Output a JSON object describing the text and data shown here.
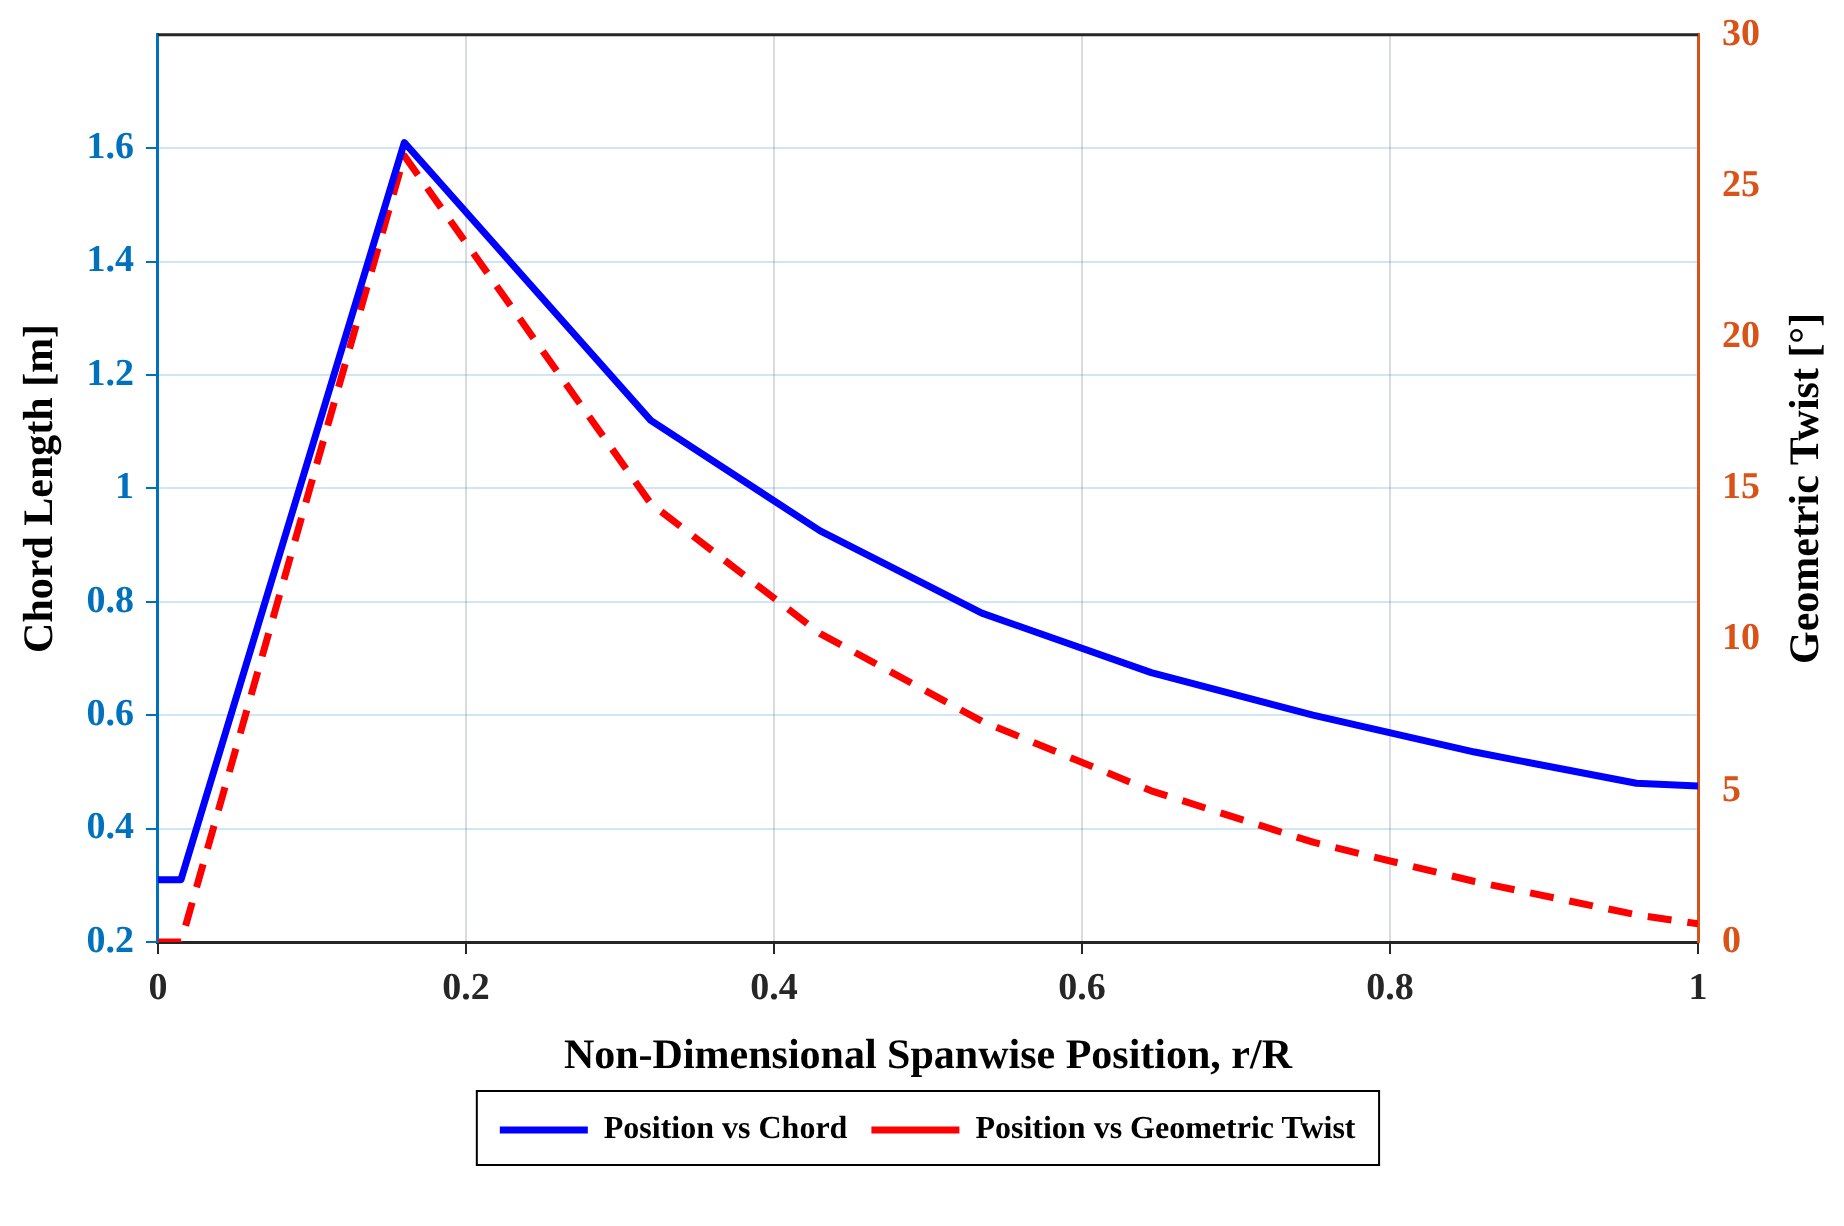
{
  "chart_data": {
    "type": "line",
    "xlabel": "Non-Dimensional Spanwise Position, r/R",
    "ylabel": "Chord Length [m]",
    "y2label": "Geometric Twist [°]",
    "xlim": [
      0,
      1
    ],
    "xticks": [
      0,
      0.2,
      0.4,
      0.6,
      0.8,
      1
    ],
    "ylim": [
      0.2,
      1.8
    ],
    "yticks": [
      0.2,
      0.4,
      0.6,
      0.8,
      1,
      1.2,
      1.4,
      1.6
    ],
    "y2lim": [
      0,
      30
    ],
    "y2ticks": [
      0,
      5,
      10,
      15,
      20,
      25,
      30
    ],
    "grid": true,
    "legend": "bottom",
    "marker": "none",
    "series": [
      {
        "name": "Position vs Chord",
        "color": "#0000ff",
        "line_style": "solid",
        "x": [
          0,
          0.015,
          0.16,
          0.32,
          0.43,
          0.535,
          0.645,
          0.75,
          0.855,
          0.96,
          1
        ],
        "values": [
          0.31,
          0.31,
          1.61,
          1.12,
          0.925,
          0.78,
          0.675,
          0.6,
          0.535,
          0.48,
          0.475
        ]
      },
      {
        "name": "Position vs Geometric Twist",
        "color": "#ff0000",
        "line_style": "dashed",
        "axis": "y2",
        "x": [
          0,
          0.015,
          0.16,
          0.32,
          0.43,
          0.535,
          0.645,
          0.75,
          0.855,
          0.96,
          1
        ],
        "values": [
          0,
          0,
          26,
          14.5,
          10.2,
          7.3,
          5,
          3.3,
          2,
          0.9,
          0.6
        ]
      }
    ]
  }
}
